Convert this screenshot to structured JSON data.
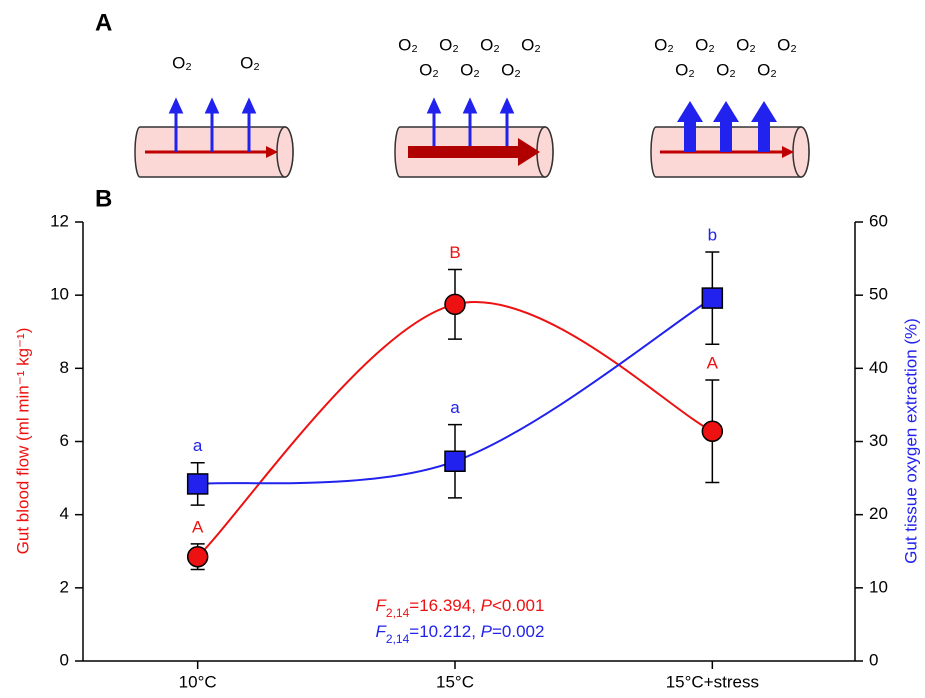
{
  "panel_labels": [
    "A",
    "B"
  ],
  "panel_a": {
    "groups": [
      [
        "O₂",
        "O₂"
      ],
      [
        "O₂",
        "O₂",
        "O₂",
        "O₂",
        "O₂",
        "O₂",
        "O₂"
      ],
      [
        "O₂",
        "O₂",
        "O₂",
        "O₂",
        "O₂",
        "O₂",
        "O₂"
      ]
    ]
  },
  "chart_data": {
    "type": "line",
    "ylabel": "Gut blood flow (ml min⁻¹ kg⁻¹)",
    "y2label": "Gut tissue oxygen extraction (%)",
    "categories": [
      "10°C",
      "15°C",
      "15°C+stress"
    ],
    "ylim": [
      0,
      12
    ],
    "yticks": [
      0,
      2,
      4,
      6,
      8,
      10,
      12
    ],
    "y2lim": [
      0,
      60
    ],
    "y2ticks": [
      0,
      10,
      20,
      30,
      40,
      50,
      60
    ],
    "series": [
      {
        "name": "Gut blood flow",
        "color": "#ee1111",
        "marker": "circle",
        "values": [
          2.85,
          9.75,
          6.28
        ],
        "errors": [
          0.35,
          0.95,
          1.4
        ],
        "letters": [
          "A",
          "B",
          "A"
        ]
      },
      {
        "name": "Gut tissue oxygen extraction",
        "color": "#2222ee",
        "marker": "square",
        "axis": "y2",
        "values": [
          24.2,
          27.3,
          49.6
        ],
        "errors": [
          2.9,
          5,
          6.3
        ],
        "letters": [
          "a",
          "a",
          "b"
        ]
      }
    ],
    "annotations": [
      {
        "color": "#ee1111",
        "parts": [
          "F",
          "2,14",
          "=16.394, ",
          "P",
          "<0.001"
        ]
      },
      {
        "color": "#2222ee",
        "parts": [
          "F",
          "2,14",
          "=10.212, ",
          "P",
          "=0.002"
        ]
      }
    ]
  }
}
